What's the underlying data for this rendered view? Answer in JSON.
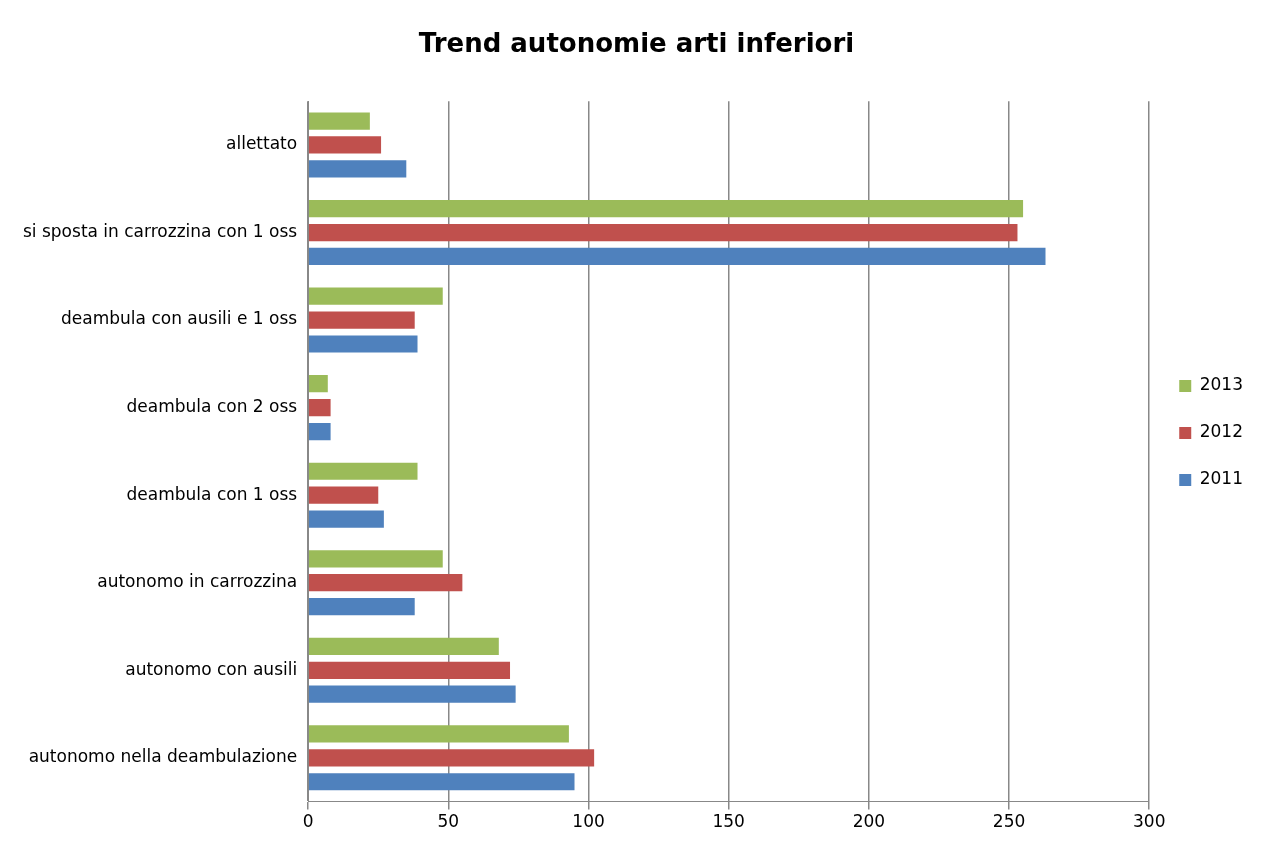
{
  "chart_data": {
    "type": "bar",
    "orientation": "horizontal",
    "title": "Trend autonomie arti inferiori",
    "categories": [
      "allettato",
      "si sposta in carrozzina con 1 oss",
      "deambula con ausili e 1 oss",
      "deambula con 2 oss",
      "deambula con 1 oss",
      "autonomo in carrozzina",
      "autonomo con ausili",
      "autonomo nella deambulazione"
    ],
    "series": [
      {
        "name": "2013",
        "color": "#9bbb59",
        "values": [
          22,
          255,
          48,
          7,
          39,
          48,
          68,
          93
        ]
      },
      {
        "name": "2012",
        "color": "#c0504d",
        "values": [
          26,
          253,
          38,
          8,
          25,
          55,
          72,
          102
        ]
      },
      {
        "name": "2011",
        "color": "#4f81bd",
        "values": [
          35,
          263,
          39,
          8,
          27,
          38,
          74,
          95
        ]
      }
    ],
    "xlim": [
      0,
      300
    ],
    "xticks": [
      0,
      50,
      100,
      150,
      200,
      250,
      300
    ],
    "grid": "x",
    "legend": "right"
  }
}
